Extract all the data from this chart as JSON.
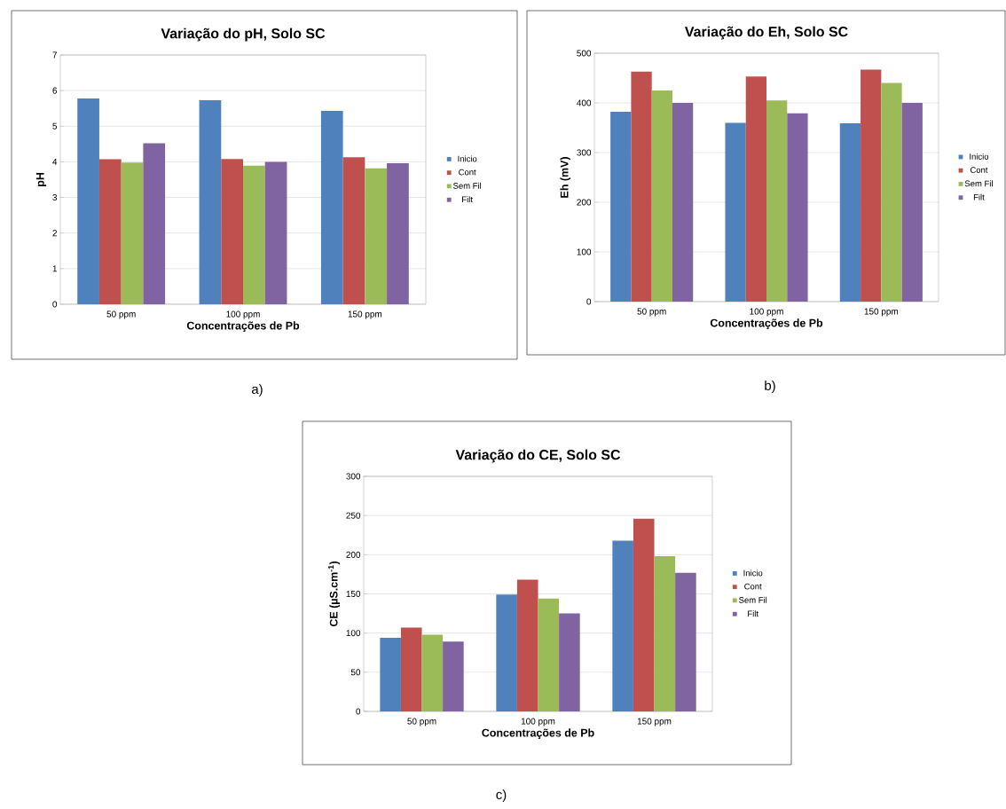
{
  "chart_data": [
    {
      "type": "bar",
      "title": "Variação do pH, Solo SC",
      "xlabel": "Concentrações de Pb",
      "ylabel": "pH",
      "categories": [
        "50 ppm",
        "100 ppm",
        "150 ppm"
      ],
      "series": [
        {
          "name": "Inicio",
          "color": "#4f81bd",
          "values": [
            5.78,
            5.73,
            5.43
          ]
        },
        {
          "name": "Cont",
          "color": "#c0504d",
          "values": [
            4.07,
            4.08,
            4.13
          ]
        },
        {
          "name": "Sem Fil",
          "color": "#9bbb59",
          "values": [
            3.98,
            3.89,
            3.82
          ]
        },
        {
          "name": "Filt",
          "color": "#8064a2",
          "values": [
            4.52,
            4.0,
            3.96
          ]
        }
      ],
      "ylim": [
        0,
        7
      ],
      "yticks": [
        0,
        1,
        2,
        3,
        4,
        5,
        6,
        7
      ],
      "grid": "y",
      "legend": "right",
      "annotations": [
        "a)"
      ]
    },
    {
      "type": "bar",
      "title": "Variação do Eh, Solo SC",
      "xlabel": "Concentrações de Pb",
      "ylabel": "Eh (mV)",
      "categories": [
        "50 ppm",
        "100 ppm",
        "150 ppm"
      ],
      "series": [
        {
          "name": "Inicio",
          "color": "#4f81bd",
          "values": [
            382,
            360,
            359
          ]
        },
        {
          "name": "Cont",
          "color": "#c0504d",
          "values": [
            463,
            453,
            467
          ]
        },
        {
          "name": "Sem Fil",
          "color": "#9bbb59",
          "values": [
            425,
            405,
            440
          ]
        },
        {
          "name": "Filt",
          "color": "#8064a2",
          "values": [
            400,
            379,
            400
          ]
        }
      ],
      "ylim": [
        0,
        500
      ],
      "yticks": [
        0,
        100,
        200,
        300,
        400,
        500
      ],
      "grid": "y",
      "legend": "right",
      "annotations": [
        "b)"
      ]
    },
    {
      "type": "bar",
      "title": "Variação do CE, Solo SC",
      "xlabel": "Concentrações de Pb",
      "ylabel": "CE (µS.cm$^{-1}$)",
      "categories": [
        "50 ppm",
        "100 ppm",
        "150 ppm"
      ],
      "series": [
        {
          "name": "Inicio",
          "color": "#4f81bd",
          "values": [
            94,
            149,
            218
          ]
        },
        {
          "name": "Cont",
          "color": "#c0504d",
          "values": [
            107,
            168,
            246
          ]
        },
        {
          "name": "Sem Fil",
          "color": "#9bbb59",
          "values": [
            98,
            144,
            198
          ]
        },
        {
          "name": "Filt",
          "color": "#8064a2",
          "values": [
            89,
            125,
            177
          ]
        }
      ],
      "ylim": [
        0,
        300
      ],
      "yticks": [
        0,
        50,
        100,
        150,
        200,
        250,
        300
      ],
      "grid": "y",
      "legend": "right",
      "annotations": [
        "c)"
      ]
    }
  ]
}
